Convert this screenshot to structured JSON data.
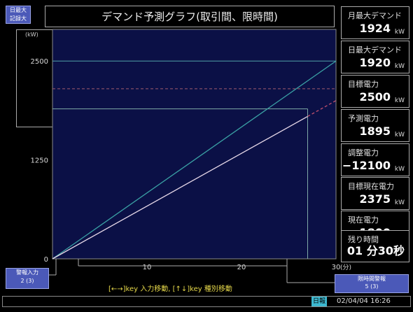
{
  "title": "デマンド予測グラフ(取引間、限時間)",
  "top_button": {
    "line1": "日最大",
    "line2": "記録大"
  },
  "chart_data": {
    "type": "line",
    "xlabel": "(分)",
    "ylabel": "(kW)",
    "xlim": [
      0,
      30
    ],
    "ylim": [
      0,
      2900
    ],
    "x_ticks": [
      "10",
      "20",
      "30"
    ],
    "y_ticks": [
      "0",
      "1250",
      "2500"
    ],
    "reference_lines": [
      {
        "name": "target_power",
        "y": 2500,
        "color": "#4fa0a6",
        "style": "solid"
      },
      {
        "name": "upper_dashed",
        "y": 2150,
        "color": "#a05a6e",
        "style": "dashed"
      },
      {
        "name": "predicted_level",
        "y": 1895,
        "color": "#7fa9a6",
        "style": "solid",
        "x_end": 27
      }
    ],
    "series": [
      {
        "x": [
          0,
          30
        ],
        "y": [
          0,
          2500
        ],
        "color": "#3aa0a4",
        "style": "solid"
      },
      {
        "x": [
          0,
          27
        ],
        "y": [
          0,
          1800
        ],
        "color": "#e6d8e8",
        "style": "solid"
      },
      {
        "x": [
          27,
          30
        ],
        "y": [
          1800,
          2000
        ],
        "color": "#c0506e",
        "style": "dashed"
      }
    ]
  },
  "panels": [
    {
      "label": "月最大デマンド",
      "value": "1924",
      "unit": "kW"
    },
    {
      "label": "日最大デマンド",
      "value": "1920",
      "unit": "kW"
    },
    {
      "label": "目標電力",
      "value": "2500",
      "unit": "kW"
    },
    {
      "label": "予測電力",
      "value": "1895",
      "unit": "kW"
    },
    {
      "label": "調整電力",
      "value": "−12100",
      "unit": "kW"
    },
    {
      "label": "目標現在電力",
      "value": "2375",
      "unit": "kW"
    },
    {
      "label": "現在電力",
      "value": "1800",
      "unit": "kW"
    },
    {
      "label": "残り時間",
      "value": "01 分30秒",
      "unit": ""
    }
  ],
  "bottom_left_button": {
    "line1": "警報入力",
    "line2": "2 (3)"
  },
  "bottom_right_button": {
    "line1": "限時間警報",
    "line2": "5 (3)"
  },
  "key_hint": "[←→]key 入力移動,  [↑↓]key 種別移動",
  "status": {
    "badge": "日報",
    "datetime": "02/04/04 16:26"
  }
}
